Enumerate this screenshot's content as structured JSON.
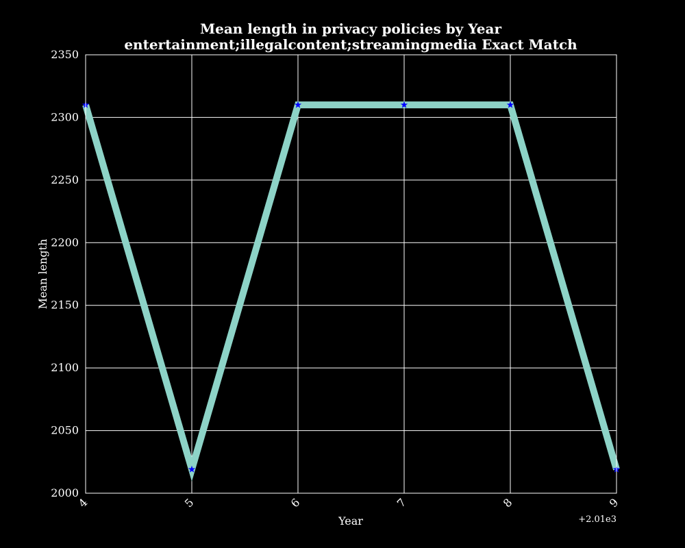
{
  "colors": {
    "background": "#000000",
    "foreground": "#ffffff",
    "line": "#8dd3c7",
    "marker": "#0000ff"
  },
  "chart_data": {
    "type": "line",
    "title": "Mean length in privacy policies by Year",
    "subtitle": "entertainment;illegalcontent;streamingmedia Exact Match",
    "xlabel": "Year",
    "ylabel": "Mean length",
    "x_offset_label": "+2.01e3",
    "x_tick_labels": [
      "4",
      "5",
      "6",
      "7",
      "8",
      "9"
    ],
    "x_ticks": [
      2014,
      2015,
      2016,
      2017,
      2018,
      2019
    ],
    "y_ticks": [
      2000,
      2050,
      2100,
      2150,
      2200,
      2250,
      2300,
      2350
    ],
    "xlim": [
      2014,
      2019
    ],
    "ylim": [
      2000,
      2350
    ],
    "grid": true,
    "marker": "star",
    "series": [
      {
        "x": [
          2014,
          2015,
          2016,
          2017,
          2018,
          2019
        ],
        "values": [
          2310,
          2019,
          2310,
          2310,
          2310,
          2019
        ]
      }
    ]
  }
}
